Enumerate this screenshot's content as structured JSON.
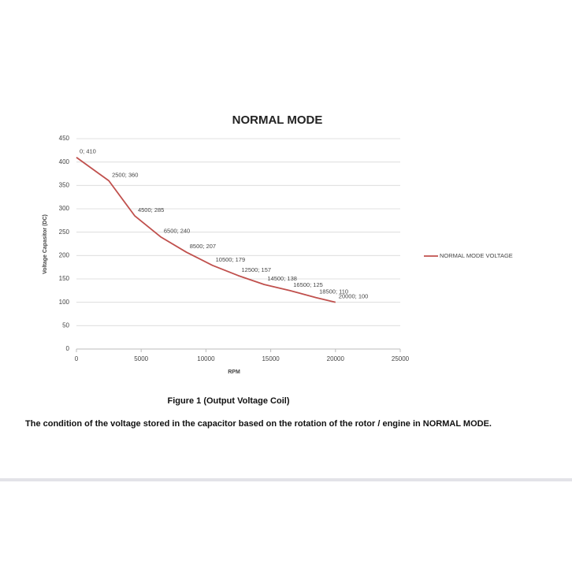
{
  "chart_data": {
    "type": "line",
    "title": "NORMAL MODE",
    "x_label": "RPM",
    "y_label": "Voltage Capasitor (DC)",
    "x": [
      0,
      2500,
      4500,
      6500,
      8500,
      10500,
      12500,
      14500,
      16500,
      18500,
      20000
    ],
    "series": [
      {
        "name": "NORMAL MODE VOLTAGE",
        "color": "#c0504d",
        "values": [
          410,
          360,
          285,
          240,
          207,
          179,
          157,
          138,
          125,
          110,
          100
        ],
        "value_labels": [
          "0; 410",
          "2500; 360",
          "4500; 285",
          "6500; 240",
          "8500; 207",
          "10500; 179",
          "12500; 157",
          "14500; 138",
          "16500; 125",
          "18500; 110",
          "20000; 100"
        ]
      }
    ],
    "xlim": [
      0,
      25000
    ],
    "ylim": [
      0,
      450
    ],
    "xticks": [
      0,
      5000,
      10000,
      15000,
      20000,
      25000
    ],
    "yticks": [
      0,
      50,
      100,
      150,
      200,
      250,
      300,
      350,
      400,
      450
    ],
    "grid": true,
    "legend": "right"
  },
  "caption": {
    "figure": "Figure 1 (Output Voltage Coil)",
    "text": "The condition of the voltage stored in the capacitor based on the rotation of the rotor / engine in NORMAL MODE."
  }
}
